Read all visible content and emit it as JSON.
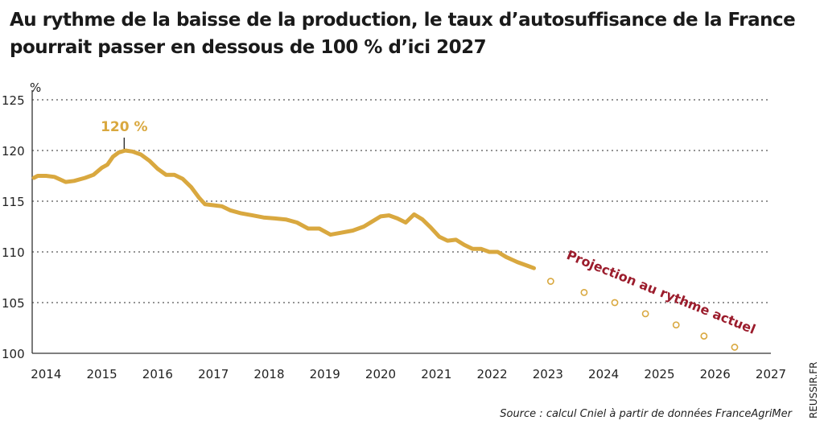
{
  "title": "Au rythme de la baisse de la production, le taux d’autosuffisance de la France pourrait passer en dessous de 100 % d’ici 2027",
  "source": "Source : calcul Cniel à partir de données FranceAgriMer",
  "credit": "REUSSIR.FR",
  "colors": {
    "line": "#d9a83f",
    "projection_text": "#9b1c2c",
    "grid": "#555555"
  },
  "chart_data": {
    "type": "line",
    "unit_label": "%",
    "ylim": [
      100,
      125
    ],
    "yticks": [
      100,
      105,
      110,
      115,
      120,
      125
    ],
    "xlim": [
      2013.75,
      2027
    ],
    "xticks": [
      2014,
      2015,
      2016,
      2017,
      2018,
      2019,
      2020,
      2021,
      2022,
      2023,
      2024,
      2025,
      2026,
      2027
    ],
    "grid": "horizontal dotted",
    "annotations": [
      {
        "text": "120 %",
        "x": 2015.4,
        "y": 120
      },
      {
        "text": "Projection au rythme actuel"
      }
    ],
    "series": [
      {
        "style": "solid",
        "points": [
          [
            2013.78,
            117.3
          ],
          [
            2013.85,
            117.5
          ],
          [
            2014.0,
            117.5
          ],
          [
            2014.15,
            117.4
          ],
          [
            2014.35,
            116.9
          ],
          [
            2014.5,
            117.0
          ],
          [
            2014.7,
            117.3
          ],
          [
            2014.85,
            117.6
          ],
          [
            2015.0,
            118.3
          ],
          [
            2015.1,
            118.6
          ],
          [
            2015.2,
            119.4
          ],
          [
            2015.3,
            119.8
          ],
          [
            2015.42,
            120.0
          ],
          [
            2015.55,
            119.9
          ],
          [
            2015.7,
            119.6
          ],
          [
            2015.85,
            119.0
          ],
          [
            2016.0,
            118.2
          ],
          [
            2016.15,
            117.6
          ],
          [
            2016.3,
            117.6
          ],
          [
            2016.45,
            117.2
          ],
          [
            2016.6,
            116.4
          ],
          [
            2016.75,
            115.3
          ],
          [
            2016.85,
            114.7
          ],
          [
            2017.0,
            114.6
          ],
          [
            2017.15,
            114.5
          ],
          [
            2017.3,
            114.1
          ],
          [
            2017.5,
            113.8
          ],
          [
            2017.7,
            113.6
          ],
          [
            2017.9,
            113.4
          ],
          [
            2018.1,
            113.3
          ],
          [
            2018.3,
            113.2
          ],
          [
            2018.5,
            112.9
          ],
          [
            2018.7,
            112.3
          ],
          [
            2018.9,
            112.3
          ],
          [
            2019.1,
            111.7
          ],
          [
            2019.3,
            111.9
          ],
          [
            2019.5,
            112.1
          ],
          [
            2019.7,
            112.5
          ],
          [
            2019.85,
            113.0
          ],
          [
            2020.0,
            113.5
          ],
          [
            2020.15,
            113.6
          ],
          [
            2020.3,
            113.3
          ],
          [
            2020.45,
            112.9
          ],
          [
            2020.6,
            113.7
          ],
          [
            2020.75,
            113.2
          ],
          [
            2020.9,
            112.4
          ],
          [
            2021.05,
            111.5
          ],
          [
            2021.2,
            111.1
          ],
          [
            2021.35,
            111.2
          ],
          [
            2021.5,
            110.7
          ],
          [
            2021.65,
            110.3
          ],
          [
            2021.8,
            110.3
          ],
          [
            2021.95,
            110.0
          ],
          [
            2022.1,
            110.0
          ],
          [
            2022.25,
            109.5
          ],
          [
            2022.45,
            109.0
          ],
          [
            2022.65,
            108.6
          ],
          [
            2022.75,
            108.4
          ]
        ]
      },
      {
        "style": "dotted",
        "points": [
          [
            2023.05,
            107.1
          ],
          [
            2023.65,
            106.0
          ],
          [
            2024.2,
            105.0
          ],
          [
            2024.75,
            103.9
          ],
          [
            2025.3,
            102.8
          ],
          [
            2025.8,
            101.7
          ],
          [
            2026.35,
            100.6
          ]
        ]
      }
    ]
  }
}
